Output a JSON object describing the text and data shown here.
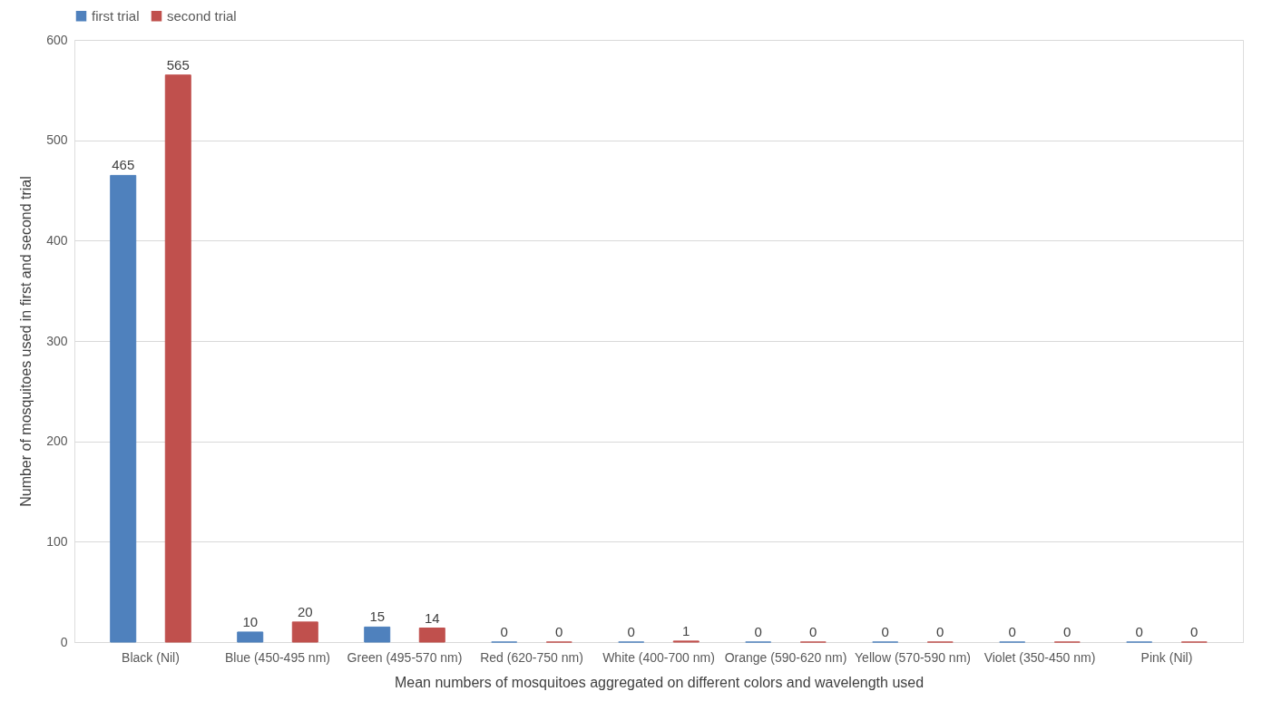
{
  "chart_data": {
    "type": "bar",
    "xlabel": "Mean numbers of mosquitoes aggregated  on different colors and wavelength used",
    "ylabel": "Number of mosquitoes used in first and second trial",
    "categories": [
      "Black (Nil)",
      "Blue (450-495 nm)",
      "Green (495-570 nm)",
      "Red (620-750 nm)",
      "White (400-700 nm)",
      "Orange (590-620 nm)",
      "Yellow (570-590 nm)",
      "Violet (350-450 nm)",
      "Pink (Nil)"
    ],
    "series": [
      {
        "name": "first trial",
        "color": "#4f81bd",
        "values": [
          465,
          10,
          15,
          0,
          0,
          0,
          0,
          0,
          0
        ]
      },
      {
        "name": "second trial",
        "color": "#c0504d",
        "values": [
          565,
          20,
          14,
          0,
          1,
          0,
          0,
          0,
          0
        ]
      }
    ],
    "ylim": [
      0,
      600
    ],
    "yticks": [
      0,
      100,
      200,
      300,
      400,
      500,
      600
    ],
    "grid": "y",
    "legend": "top",
    "data_labels": true
  }
}
